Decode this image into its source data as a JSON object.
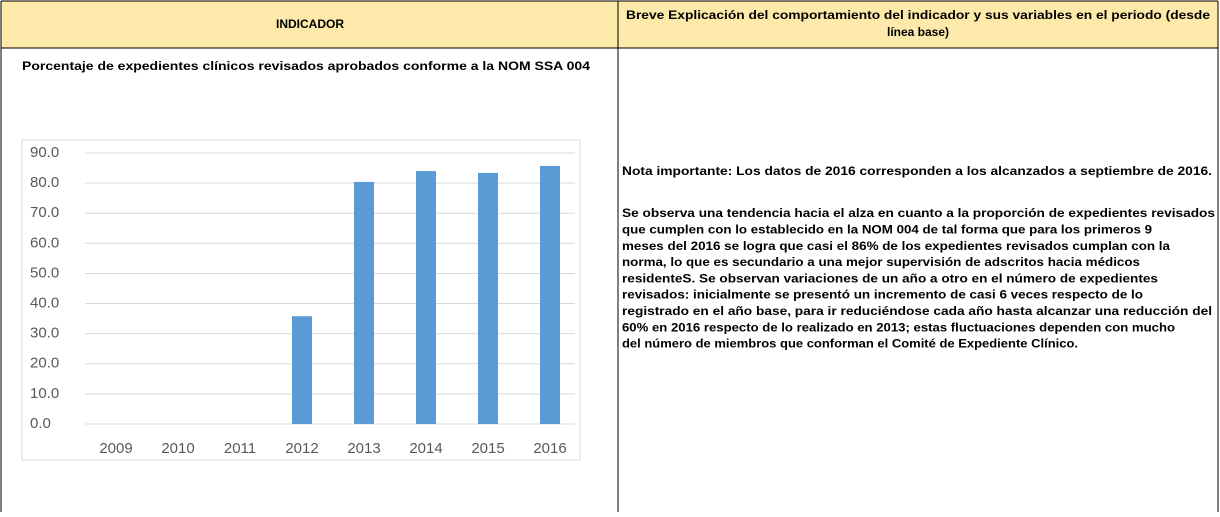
{
  "header": {
    "indicator": "INDICADOR",
    "explanation": [
      "Breve Explicación del comportamiento del indicador y sus variables en el periodo (desde",
      "línea base)"
    ]
  },
  "indicator_name": "Porcentaje  de expedientes clínicos revisados aprobados conforme a la NOM SSA 004",
  "note": "Nota importante:  Los datos de 2016 corresponden a los alcanzados a septiembre de 2016.",
  "paragraph": [
    "Se observa una tendencia hacia el alza en cuanto a la proporción de expedientes revisados",
    "que cumplen con lo establecido en la NOM 004 de tal forma que para los primeros 9",
    "meses del 2016 se logra que casi el 86% de los expedientes revisados cumplan con la",
    "norma, lo que es secundario a una mejor supervisión de adscritos hacia médicos",
    "residenteS.  Se observan variaciones de un año a otro en el número de expedientes",
    "revisados: inicialmente se presentó un incremento de casi 6 veces respecto de lo",
    "registrado en el año base, para ir reduciéndose cada año hasta alcanzar una reducción del",
    "60% en 2016 respecto de lo realizado en 2013; estas fluctuaciones dependen con mucho",
    "del número de miembros que conforman el Comité de Expediente Clínico."
  ],
  "chart_data": {
    "type": "bar",
    "categories": [
      "2009",
      "2010",
      "2011",
      "2012",
      "2013",
      "2014",
      "2015",
      "2016"
    ],
    "values": [
      null,
      null,
      null,
      35.8,
      80.4,
      84.0,
      83.4,
      85.7
    ],
    "color": "#5b9bd5",
    "ylim": [
      0,
      90
    ],
    "yticks": [
      {
        "value": 0,
        "label": "0.0"
      },
      {
        "value": 10,
        "label": "10.0"
      },
      {
        "value": 20,
        "label": "20.0"
      },
      {
        "value": 30,
        "label": "30.0"
      },
      {
        "value": 40,
        "label": "40.0"
      },
      {
        "value": 50,
        "label": "50.0"
      },
      {
        "value": 60,
        "label": "60.0"
      },
      {
        "value": 70,
        "label": "70.0"
      },
      {
        "value": 80,
        "label": "80.0"
      },
      {
        "value": 90,
        "label": "90.0"
      }
    ],
    "grid": true
  }
}
